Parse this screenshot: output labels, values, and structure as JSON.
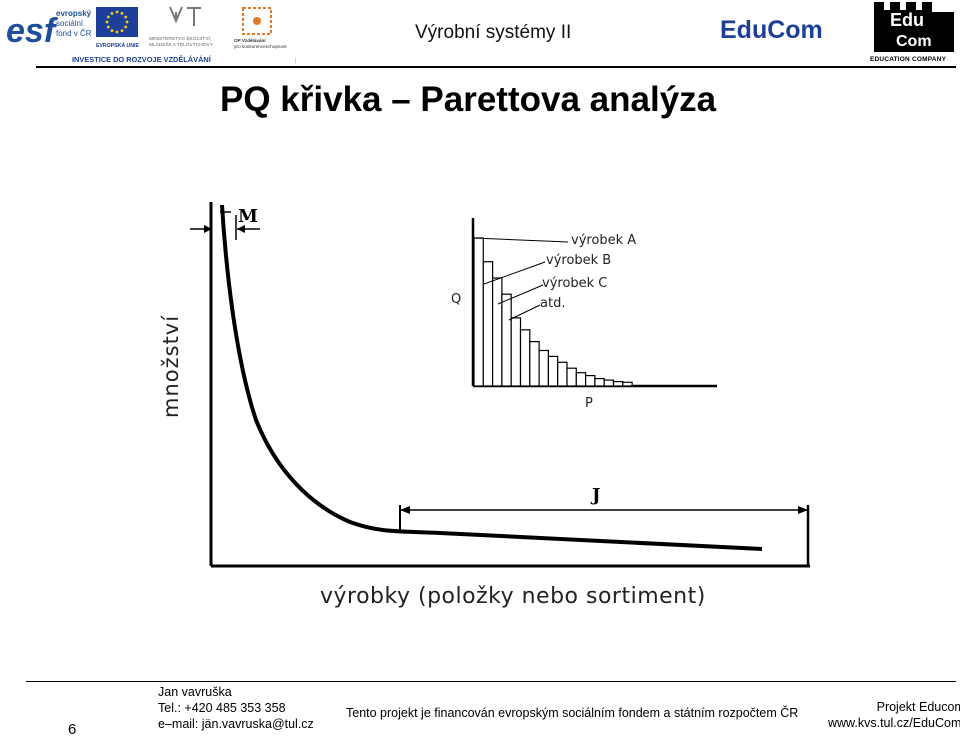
{
  "header": {
    "title": "Výrobní systémy II",
    "brand": "EduCom",
    "logos": {
      "esf_mark": "esf",
      "esf_text": [
        "evropský",
        "sociální",
        "fond v ČR"
      ],
      "eu_caption": "EVROPSKÁ UNIE",
      "msmt_caption": [
        "MINISTERSTVO ŠKOLSTVÍ,",
        "MLÁDEŽE A TĚLOVÝCHOVY"
      ],
      "op_caption": [
        "OP Vzdělávání",
        "pro konkurenceschopnost"
      ],
      "investment_banner": "INVESTICE DO ROZVOJE VZDĚLÁVÁNÍ",
      "edu_logo_upper": "Edu",
      "edu_logo_lower": "Com",
      "edu_logo_caption": "EDUCATION COMPANY"
    },
    "colors": {
      "esf_blue": "#1d4f9c",
      "eu_blue": "#1d3f9a",
      "eu_star": "#f5d20a",
      "brand": "#1d3f9a"
    }
  },
  "slide": {
    "title": "PQ křivka – Parettova analýza"
  },
  "diagram": {
    "y_axis_label": "množství",
    "x_axis_label": "výrobky (položky nebo sortiment)",
    "region_m_label": "M",
    "region_j_label": "J",
    "inset": {
      "y_label": "Q",
      "x_label": "P",
      "item_labels": [
        "výrobek A",
        "výrobek B",
        "výrobek C",
        "atd."
      ],
      "bar_levels": [
        1.0,
        0.84,
        0.73,
        0.62,
        0.46,
        0.38,
        0.3,
        0.24,
        0.2,
        0.16,
        0.12,
        0.09,
        0.07,
        0.05,
        0.04,
        0.03,
        0.025
      ]
    }
  },
  "footer": {
    "page_number": "6",
    "author_name": "Jan vavruška",
    "author_phone": "Tel.: +420 485 353 358",
    "author_email": "e–mail: jän.vavruska@tul.cz",
    "funding_note": "Tento projekt je financován evropským sociálním fondem a státním rozpočtem ČR",
    "project_name": "Projekt Educom",
    "project_url": "www.kvs.tul.cz/EduCom/"
  }
}
